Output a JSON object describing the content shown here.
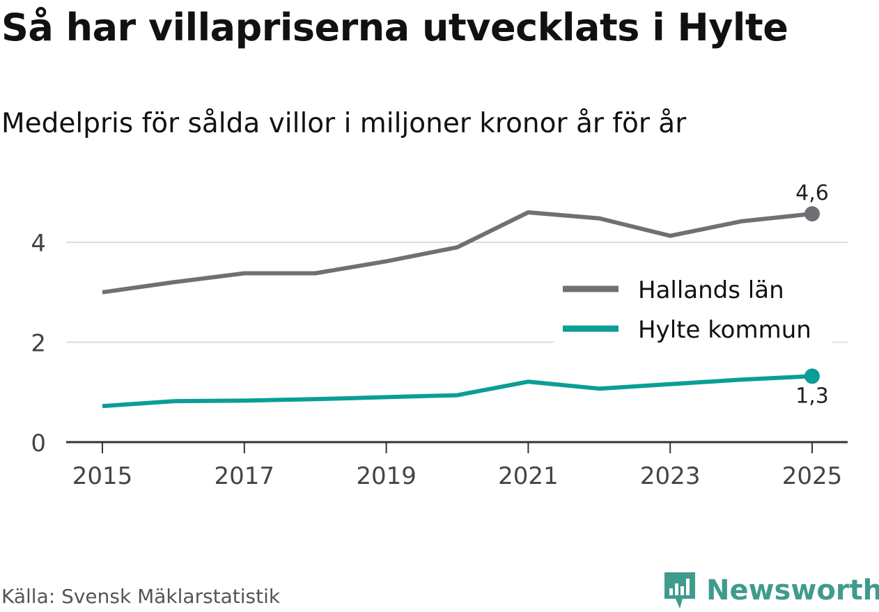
{
  "title": "Så har villapriserna utvecklats i Hylte",
  "subtitle": "Medelpris för sålda villor i miljoner kronor år för år",
  "source": "Källa: Svensk Mäklarstatistik",
  "brand": {
    "name": "Newsworthy",
    "color": "#3f9b8c",
    "icon": "newsworthy-logo-icon"
  },
  "chart_data": {
    "type": "line",
    "title": "Så har villapriserna utvecklats i Hylte",
    "subtitle": "Medelpris för sålda villor i miljoner kronor år för år",
    "xlabel": "",
    "ylabel": "",
    "x": [
      2015,
      2016,
      2017,
      2018,
      2019,
      2020,
      2021,
      2022,
      2023,
      2024,
      2025
    ],
    "xlim": [
      2014.5,
      2025.5
    ],
    "ylim": [
      0,
      4.8
    ],
    "xticks": [
      2015,
      2017,
      2019,
      2021,
      2023,
      2025
    ],
    "xtick_labels": [
      "2015",
      "2017",
      "2019",
      "2021",
      "2023",
      "2025"
    ],
    "yticks": [
      0,
      2,
      4
    ],
    "ytick_labels": [
      "0",
      "2",
      "4"
    ],
    "grid": true,
    "legend_position": "right",
    "series": [
      {
        "name": "Hallands län",
        "color": "#707074",
        "values": [
          3.0,
          3.2,
          3.38,
          3.38,
          3.62,
          3.9,
          4.6,
          4.48,
          4.13,
          4.42,
          4.57
        ],
        "end_label": "4,6",
        "end_label_position": "above"
      },
      {
        "name": "Hylte kommun",
        "color": "#0a9e95",
        "values": [
          0.72,
          0.82,
          0.83,
          0.86,
          0.9,
          0.94,
          1.21,
          1.07,
          1.16,
          1.25,
          1.32
        ],
        "end_label": "1,3",
        "end_label_position": "below"
      }
    ]
  }
}
